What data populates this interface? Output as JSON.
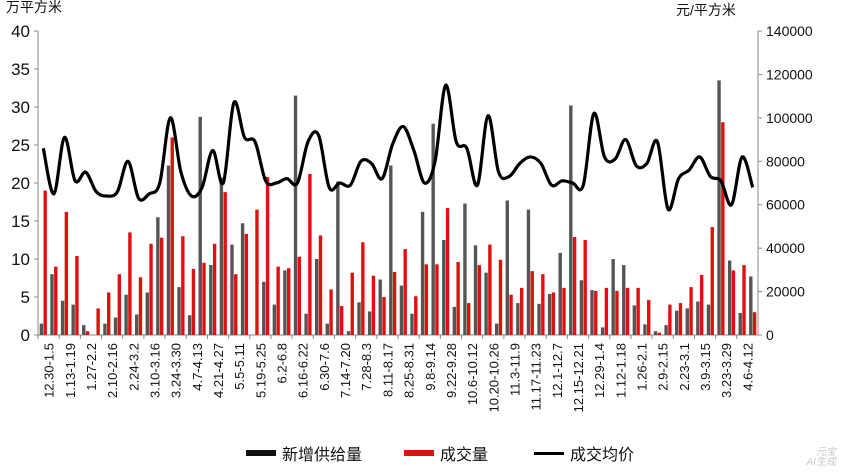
{
  "chart_data": {
    "type": "bar+line",
    "unit_left": "万平方米",
    "unit_right": "元/平方米",
    "y_left_ticks": [
      "0",
      "5",
      "10",
      "15",
      "20",
      "25",
      "30",
      "35",
      "40"
    ],
    "y_right_ticks": [
      "0",
      "20000",
      "40000",
      "60000",
      "80000",
      "100000",
      "120000",
      "140000"
    ],
    "ylim_left": [
      0,
      40
    ],
    "ylim_right": [
      0,
      140000
    ],
    "x_labels": [
      "12.30-1.5",
      "1.13-1.19",
      "1.27-2.2",
      "2.10-2.16",
      "2.24-3.2",
      "3.10-3.16",
      "3.24-3.30",
      "4.7-4.13",
      "4.21-4.27",
      "5.5-5.11",
      "5.19-5.25",
      "6.2-6.8",
      "6.16-6.22",
      "6.30-7.6",
      "7.14-7.20",
      "7.28-8.3",
      "8.11-8.17",
      "8.25-8.31",
      "9.8-9.14",
      "9.22-9.28",
      "10.6-10.12",
      "10.20-10.26",
      "11.3-11.9",
      "11.17-11.23",
      "12.1-12.7",
      "12.15-12.21",
      "12.29-1.4",
      "1.12-1.18",
      "1.26-2.1",
      "2.9-2.15",
      "2.23-3.1",
      "3.9-3.15",
      "3.23-3.29",
      "4.6-4.12"
    ],
    "series": [
      {
        "name": "新增供给量",
        "color": "#555555",
        "values": [
          1.5,
          8,
          4.5,
          4,
          1.3,
          0,
          1.5,
          2.3,
          5.3,
          2.7,
          5.6,
          15.5,
          22.3,
          6.3,
          2.6,
          28.7,
          9.2,
          20.7,
          11.9,
          14.7,
          0,
          7,
          4,
          8.5,
          31.5,
          2.8,
          10,
          1.5,
          20.2,
          0.5,
          4.3,
          3.1,
          7.3,
          22.3,
          6.5,
          2.8,
          16.2,
          27.8,
          12.5,
          3.7,
          17.3,
          11.8,
          8.2,
          1.5,
          17.7,
          4.2,
          16.5,
          4.1,
          5.4,
          10.8,
          30.2,
          7.2,
          5.9,
          1,
          10,
          9.2,
          3.9,
          1.4,
          0.5,
          1.3,
          3.2,
          3.5,
          4.4,
          4,
          33.5,
          9.8,
          2.9,
          7.7
        ]
      },
      {
        "name": "成交量",
        "color": "#e01010",
        "values": [
          19,
          9,
          16.2,
          10.4,
          0.5,
          3.5,
          5.6,
          8,
          13.5,
          7.6,
          12,
          12.8,
          26,
          13,
          8.7,
          9.5,
          12,
          18.8,
          8,
          13.3,
          16.5,
          20.8,
          9,
          8.8,
          10.3,
          21.2,
          13.1,
          6,
          3.8,
          8.2,
          12.2,
          7.8,
          5,
          8.3,
          11.3,
          5.1,
          9.3,
          9.3,
          16.7,
          9.6,
          4.2,
          9.2,
          11.9,
          9.9,
          5.3,
          6.2,
          8.4,
          8,
          5.6,
          6.2,
          12.9,
          12.5,
          5.8,
          6.2,
          5.8,
          6.2,
          6.2,
          4.6,
          0.3,
          4,
          4.2,
          6.3,
          7.9,
          14.2,
          28,
          8.5,
          9.2,
          3
        ]
      },
      {
        "name": "成交均价",
        "color": "#000000",
        "values": [
          86000,
          65000,
          91000,
          71000,
          75000,
          66000,
          64000,
          66000,
          80000,
          63000,
          65000,
          70000,
          100000,
          75000,
          64000,
          68000,
          85000,
          70000,
          107000,
          91000,
          89000,
          71000,
          70000,
          72000,
          70000,
          89000,
          92000,
          68000,
          70000,
          69000,
          80000,
          79000,
          72000,
          88000,
          96000,
          85000,
          70000,
          80000,
          115000,
          89000,
          86000,
          69000,
          101000,
          75000,
          73000,
          79000,
          82000,
          79000,
          69000,
          71000,
          70000,
          69000,
          102000,
          82000,
          81000,
          90000,
          78000,
          79000,
          89000,
          58000,
          72000,
          76000,
          82000,
          73000,
          71000,
          60000,
          82000,
          68000
        ]
      }
    ]
  },
  "watermark": {
    "line1": "元宝",
    "line2": "AI生成"
  }
}
